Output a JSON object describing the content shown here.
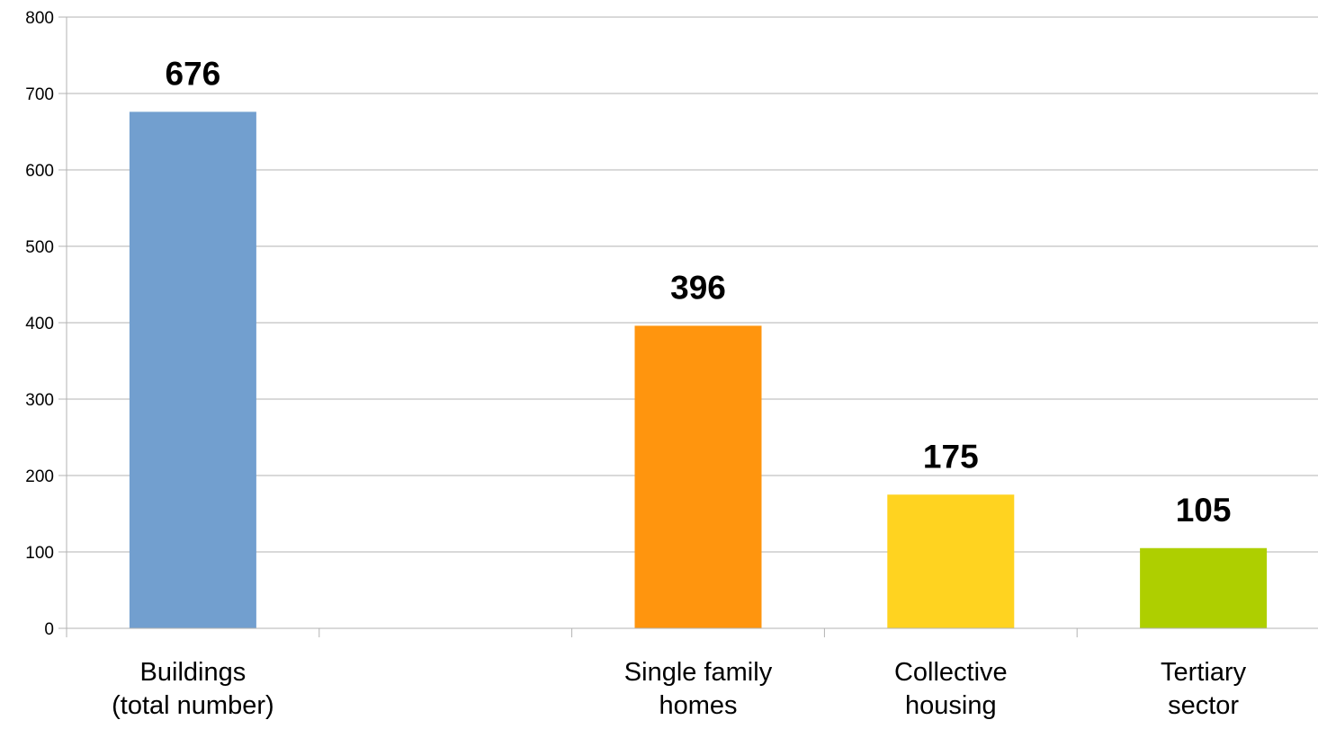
{
  "chart_data": {
    "type": "bar",
    "categories": [
      [
        "Buildings",
        "(total number)"
      ],
      [],
      [
        "Single family",
        "homes"
      ],
      [
        "Collective",
        "housing"
      ],
      [
        "Tertiary",
        "sector"
      ]
    ],
    "values": [
      676,
      null,
      396,
      175,
      105
    ],
    "data_labels": [
      "676",
      "",
      "396",
      "175",
      "105"
    ],
    "bar_colors": [
      "#729fcf",
      "#ffffff",
      "#ff950e",
      "#ffd320",
      "#aecf00"
    ],
    "ylim": [
      0,
      800
    ],
    "yticks": [
      0,
      100,
      200,
      300,
      400,
      500,
      600,
      700,
      800
    ],
    "ytick_labels": [
      "0",
      "100",
      "200",
      "300",
      "400",
      "500",
      "600",
      "700",
      "800"
    ],
    "grid": true,
    "gridline_color": "#b3b3b3",
    "axis_color": "#b3b3b3",
    "legend": "none",
    "title": "",
    "xlabel": "",
    "ylabel": ""
  }
}
